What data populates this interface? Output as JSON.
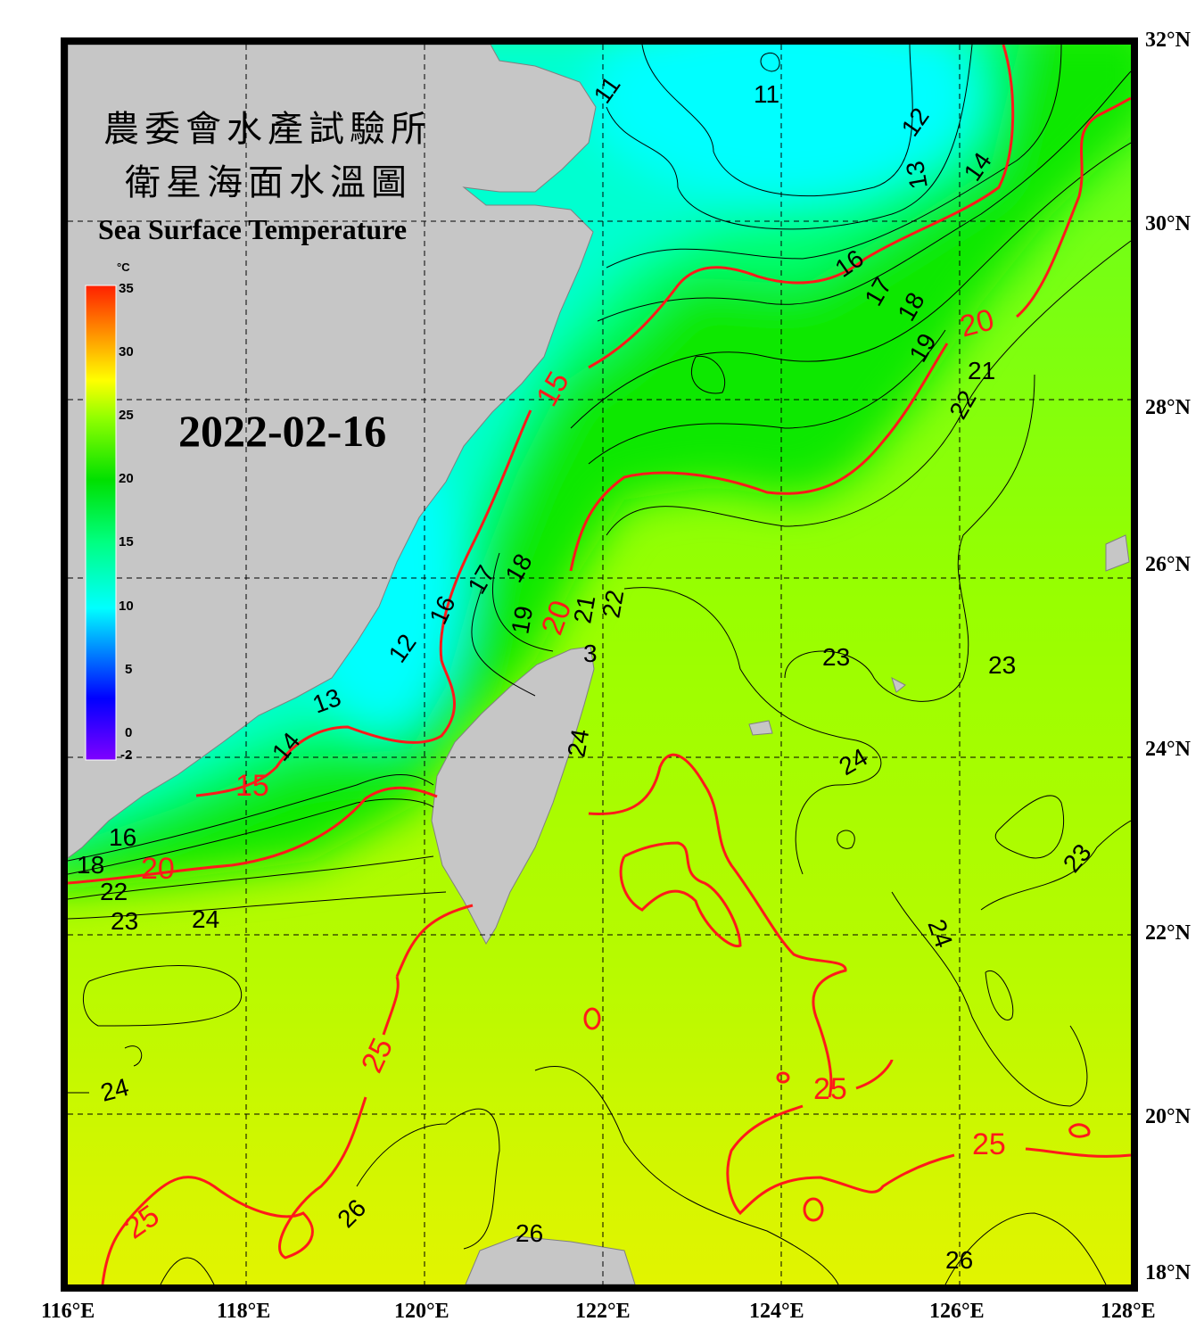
{
  "title": {
    "line1": "農委會水產試驗所",
    "line2": "衛星海面水溫圖",
    "english": "Sea Surface Temperature",
    "date": "2022-02-16"
  },
  "colorbar": {
    "unit": "°C",
    "ticks": [
      "35",
      "30",
      "25",
      "20",
      "15",
      "10",
      "5",
      "0",
      "-2"
    ],
    "range": [
      -2,
      35
    ],
    "colors": [
      "#7f00ff",
      "#0000ff",
      "#00ffff",
      "#00ff80",
      "#00e000",
      "#80ff00",
      "#ffff00",
      "#ff8000",
      "#ff2000"
    ]
  },
  "axes": {
    "lon_labels": [
      "116°E",
      "118°E",
      "120°E",
      "122°E",
      "124°E",
      "126°E",
      "128°E"
    ],
    "lat_labels": [
      "32°N",
      "30°N",
      "28°N",
      "26°N",
      "24°N",
      "22°N",
      "20°N",
      "18°N"
    ]
  },
  "contour_labels": {
    "black": [
      "11",
      "11",
      "12",
      "13",
      "14",
      "12",
      "16",
      "17",
      "18",
      "19",
      "21",
      "22",
      "16",
      "17",
      "18",
      "19",
      "21",
      "22",
      "12",
      "13",
      "14",
      "23",
      "23",
      "24",
      "24",
      "24",
      "23",
      "24",
      "23",
      "24",
      "26",
      "26",
      "26",
      "16",
      "18",
      "22",
      "22",
      "3"
    ],
    "red": [
      "15",
      "20",
      "20",
      "15",
      "20",
      "25",
      "25",
      "25",
      "25",
      "0",
      "0",
      "0",
      "5"
    ]
  },
  "colors": {
    "land": "#c6c6c6",
    "contour_major": "#ff1a1a",
    "contour_minor": "#000000",
    "frame": "#000000"
  }
}
